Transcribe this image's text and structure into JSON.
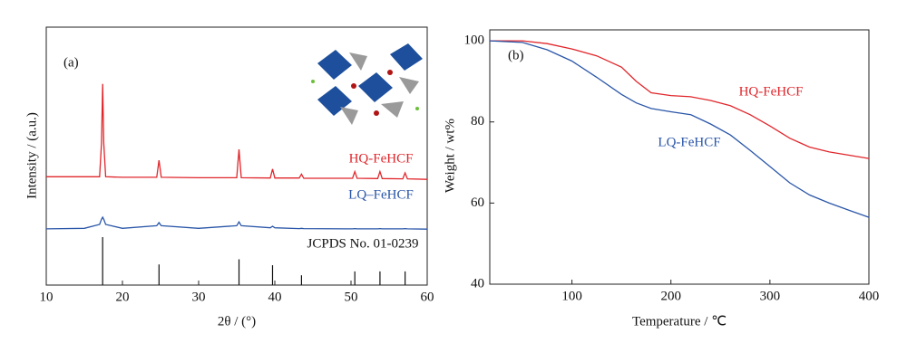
{
  "chart_data": [
    {
      "type": "line",
      "panel_label": "(a)",
      "x_label": "2θ / (°)",
      "y_label": "Intensity / (a.u.)",
      "xlim": [
        10,
        60
      ],
      "xticks": [
        10,
        20,
        30,
        40,
        50,
        60
      ],
      "ylim": [
        0,
        100
      ],
      "x": [
        10,
        15,
        17,
        17.25,
        17.4,
        17.55,
        17.8,
        20,
        24.5,
        24.8,
        25.1,
        30,
        35,
        35.3,
        35.6,
        39.4,
        39.7,
        40,
        43.2,
        43.5,
        43.8,
        50.2,
        50.5,
        50.8,
        53.5,
        53.8,
        54.1,
        56.8,
        57.1,
        57.4,
        60
      ],
      "series": [
        {
          "name": "HQ-FeHCF",
          "color": "#e0262b",
          "values": [
            42,
            42,
            42,
            55,
            78,
            55,
            42,
            41.8,
            41.8,
            48.4,
            41.8,
            41.6,
            41.6,
            52.6,
            41.6,
            41.5,
            45,
            41.5,
            41.5,
            43,
            41.4,
            41.4,
            44,
            41.4,
            41.3,
            44,
            41.3,
            41.2,
            43.5,
            41.2,
            41
          ]
        },
        {
          "name": "LQ–FeHCF",
          "color": "#2a56a8",
          "values": [
            21.8,
            22,
            23.5,
            25.5,
            26.3,
            25.5,
            23.5,
            22,
            23,
            24.2,
            23,
            22,
            23,
            24.5,
            23,
            22.2,
            22.8,
            22.2,
            21.9,
            22,
            21.9,
            21.8,
            21.9,
            21.8,
            21.8,
            21.9,
            21.8,
            21.8,
            21.9,
            21.8,
            21.7
          ]
        }
      ],
      "reference": {
        "name": "JCPDS No. 01-0239",
        "color": "#111111",
        "x": [
          17.4,
          24.8,
          35.3,
          39.7,
          43.5,
          50.5,
          53.8,
          57.1
        ],
        "values": [
          18.6,
          8,
          10,
          7.7,
          3.8,
          5.3,
          5.3,
          5.3
        ]
      }
    },
    {
      "type": "line",
      "panel_label": "(b)",
      "x_label": "Temperature / ℃",
      "y_label": "Weight / wt%",
      "xlim": [
        17,
        400
      ],
      "xticks": [
        100,
        200,
        300,
        400
      ],
      "ylim": [
        40,
        102.7
      ],
      "yticks": [
        40,
        60,
        80,
        100
      ],
      "x": [
        17,
        50,
        75,
        100,
        125,
        150,
        165,
        180,
        200,
        220,
        240,
        260,
        280,
        300,
        320,
        340,
        360,
        380,
        400
      ],
      "series": [
        {
          "name": "HQ-FeHCF",
          "color": "#e0262b",
          "values": [
            100,
            100,
            99.3,
            98,
            96.3,
            93.5,
            90,
            87.2,
            86.5,
            86.2,
            85.3,
            84,
            81.8,
            79,
            76,
            73.8,
            72.6,
            71.8,
            71
          ]
        },
        {
          "name": "LQ-FeHCF",
          "color": "#2a56a8",
          "values": [
            100,
            99.6,
            97.8,
            95,
            91,
            86.8,
            84.7,
            83.3,
            82.5,
            81.8,
            79.5,
            76.8,
            73,
            69,
            65,
            62,
            60,
            58.2,
            56.5
          ]
        }
      ]
    }
  ]
}
